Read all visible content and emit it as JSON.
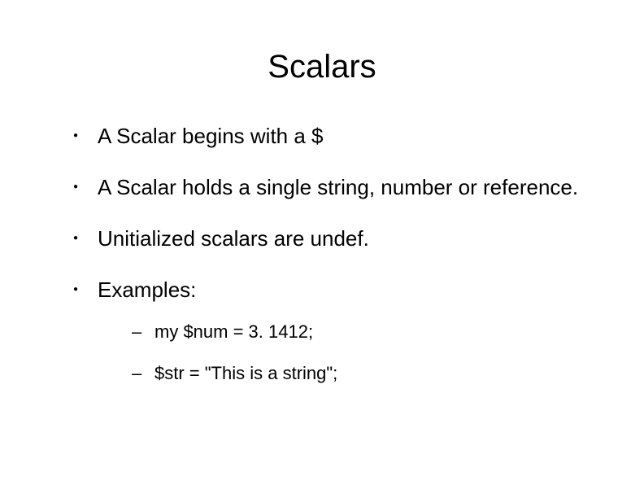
{
  "slide": {
    "title": "Scalars",
    "title_fontsize": 40,
    "body_fontsize": 26,
    "sub_fontsize": 22,
    "background_color": "#ffffff",
    "text_color": "#000000",
    "bullets": [
      {
        "text": "A Scalar begins with a $"
      },
      {
        "text": "A Scalar holds a single string, number or reference."
      },
      {
        "text": "Unitialized scalars are undef."
      },
      {
        "text": "Examples:",
        "sub": [
          {
            "text": "my $num = 3. 1412;"
          },
          {
            "text": "$str = \"This is a string\";"
          }
        ]
      }
    ]
  }
}
